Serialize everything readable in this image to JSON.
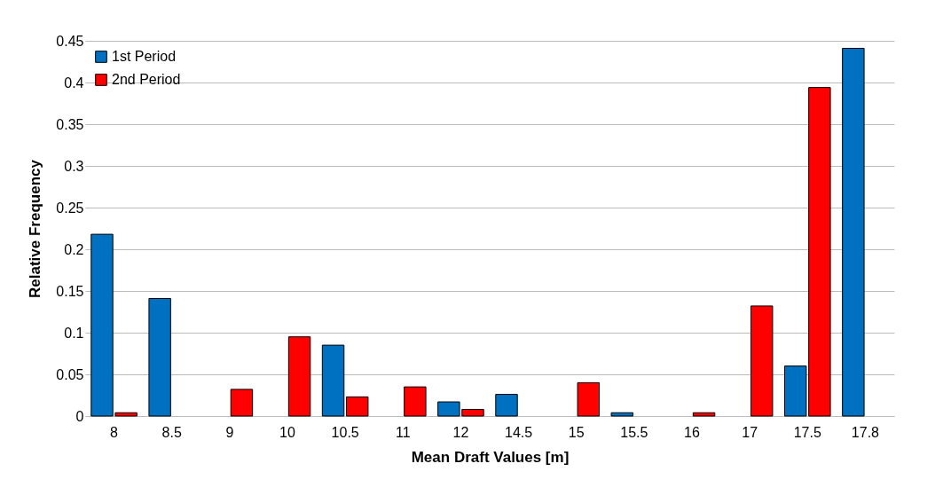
{
  "chart_data": {
    "type": "bar",
    "xlabel": "Mean Draft Values [m]",
    "ylabel": "Relative Frequency",
    "categories": [
      "8",
      "8.5",
      "9",
      "10",
      "10.5",
      "11",
      "12",
      "14.5",
      "15",
      "15.5",
      "16",
      "17",
      "17.5",
      "17.8"
    ],
    "series": [
      {
        "name": "1st Period",
        "color": "#0070c0",
        "values": [
          0.218,
          0.141,
          0,
          0,
          0.085,
          0,
          0.017,
          0.026,
          0,
          0.004,
          0,
          0,
          0.06,
          0.441
        ]
      },
      {
        "name": "2nd Period",
        "color": "#ff0000",
        "values": [
          0.004,
          0,
          0.032,
          0.095,
          0.023,
          0.035,
          0.008,
          0,
          0.04,
          0,
          0.004,
          0.132,
          0.394,
          0
        ]
      }
    ],
    "ylim": [
      0,
      0.45
    ],
    "yticks": [
      0,
      0.05,
      0.1,
      0.15,
      0.2,
      0.25,
      0.3,
      0.35,
      0.4,
      0.45
    ],
    "grid": "y",
    "legend": "top left"
  }
}
